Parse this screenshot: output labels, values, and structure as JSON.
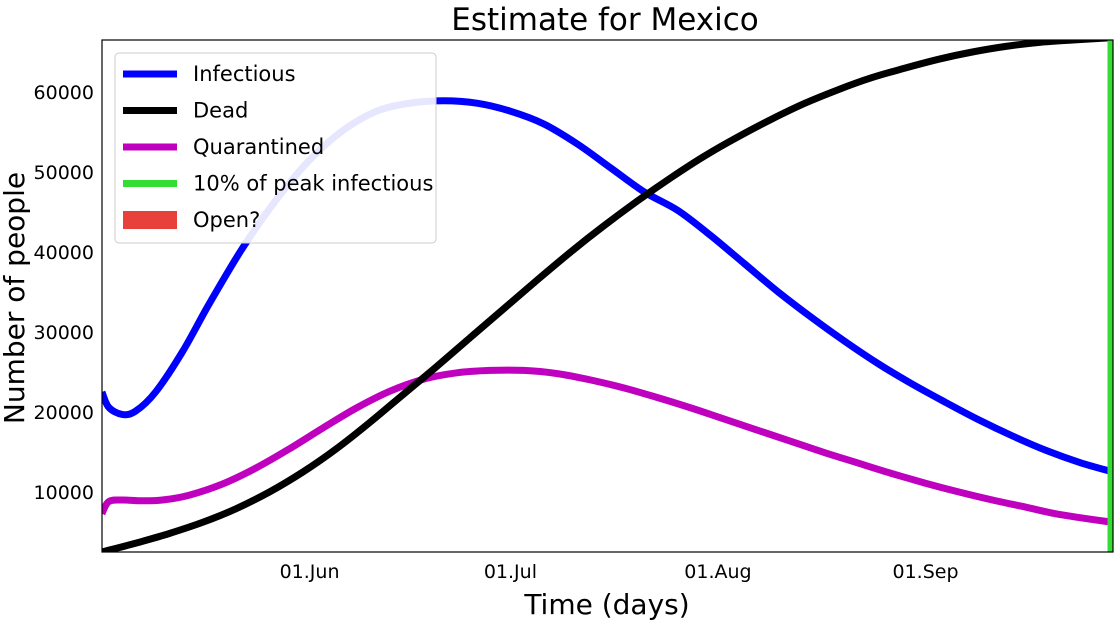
{
  "chart_data": {
    "type": "line",
    "title": "Estimate for Mexico",
    "xlabel": "Time (days)",
    "ylabel": "Number of people",
    "x_range": [
      "2020-05-01",
      "2020-09-29"
    ],
    "ylim": [
      2500,
      66500
    ],
    "x_ticks": [
      {
        "date": "2020-06-01",
        "label": "01.Jun"
      },
      {
        "date": "2020-07-01",
        "label": "01.Jul"
      },
      {
        "date": "2020-08-01",
        "label": "01.Aug"
      },
      {
        "date": "2020-09-01",
        "label": "01.Sep"
      }
    ],
    "y_ticks": [
      10000,
      20000,
      30000,
      40000,
      50000,
      60000
    ],
    "grid": false,
    "legend_position": "top-left",
    "series": [
      {
        "name": "Infectious",
        "color": "#0000ff",
        "points": [
          [
            "2020-05-01",
            22500
          ],
          [
            "2020-05-02",
            20600
          ],
          [
            "2020-05-04",
            19700
          ],
          [
            "2020-05-06",
            20100
          ],
          [
            "2020-05-09",
            22500
          ],
          [
            "2020-05-13",
            27500
          ],
          [
            "2020-05-17",
            33500
          ],
          [
            "2020-05-22",
            40500
          ],
          [
            "2020-05-27",
            46500
          ],
          [
            "2020-06-01",
            51500
          ],
          [
            "2020-06-06",
            55200
          ],
          [
            "2020-06-11",
            57600
          ],
          [
            "2020-06-16",
            58600
          ],
          [
            "2020-06-21",
            58900
          ],
          [
            "2020-06-26",
            58600
          ],
          [
            "2020-07-01",
            57600
          ],
          [
            "2020-07-06",
            56000
          ],
          [
            "2020-07-11",
            53500
          ],
          [
            "2020-07-16",
            50500
          ],
          [
            "2020-07-21",
            47500
          ],
          [
            "2020-07-26",
            45200
          ],
          [
            "2020-07-31",
            42000
          ],
          [
            "2020-08-05",
            38500
          ],
          [
            "2020-08-10",
            35000
          ],
          [
            "2020-08-15",
            31800
          ],
          [
            "2020-08-20",
            28800
          ],
          [
            "2020-08-25",
            26000
          ],
          [
            "2020-08-30",
            23500
          ],
          [
            "2020-09-04",
            21200
          ],
          [
            "2020-09-09",
            19000
          ],
          [
            "2020-09-14",
            17000
          ],
          [
            "2020-09-19",
            15200
          ],
          [
            "2020-09-24",
            13700
          ],
          [
            "2020-09-29",
            12500
          ]
        ]
      },
      {
        "name": "Dead",
        "color": "#000000",
        "points": [
          [
            "2020-05-01",
            2500
          ],
          [
            "2020-05-06",
            3600
          ],
          [
            "2020-05-11",
            4800
          ],
          [
            "2020-05-16",
            6200
          ],
          [
            "2020-05-21",
            7900
          ],
          [
            "2020-05-26",
            10000
          ],
          [
            "2020-05-31",
            12500
          ],
          [
            "2020-06-05",
            15400
          ],
          [
            "2020-06-10",
            18700
          ],
          [
            "2020-06-15",
            22200
          ],
          [
            "2020-06-20",
            25700
          ],
          [
            "2020-06-25",
            29300
          ],
          [
            "2020-06-30",
            32900
          ],
          [
            "2020-07-05",
            36500
          ],
          [
            "2020-07-10",
            40000
          ],
          [
            "2020-07-15",
            43300
          ],
          [
            "2020-07-20",
            46400
          ],
          [
            "2020-07-25",
            49300
          ],
          [
            "2020-07-30",
            52000
          ],
          [
            "2020-08-04",
            54400
          ],
          [
            "2020-08-09",
            56600
          ],
          [
            "2020-08-14",
            58600
          ],
          [
            "2020-08-19",
            60300
          ],
          [
            "2020-08-24",
            61800
          ],
          [
            "2020-08-29",
            63000
          ],
          [
            "2020-09-03",
            64100
          ],
          [
            "2020-09-08",
            65000
          ],
          [
            "2020-09-13",
            65700
          ],
          [
            "2020-09-18",
            66200
          ],
          [
            "2020-09-23",
            66500
          ],
          [
            "2020-09-29",
            66800
          ]
        ]
      },
      {
        "name": "Quarantined",
        "color": "#bf00bf",
        "points": [
          [
            "2020-05-01",
            7300
          ],
          [
            "2020-05-02",
            8800
          ],
          [
            "2020-05-04",
            9000
          ],
          [
            "2020-05-07",
            8900
          ],
          [
            "2020-05-10",
            9000
          ],
          [
            "2020-05-14",
            9600
          ],
          [
            "2020-05-19",
            11000
          ],
          [
            "2020-05-24",
            13000
          ],
          [
            "2020-05-29",
            15400
          ],
          [
            "2020-06-03",
            18000
          ],
          [
            "2020-06-08",
            20500
          ],
          [
            "2020-06-13",
            22600
          ],
          [
            "2020-06-18",
            24100
          ],
          [
            "2020-06-23",
            24900
          ],
          [
            "2020-06-28",
            25200
          ],
          [
            "2020-07-03",
            25200
          ],
          [
            "2020-07-08",
            24800
          ],
          [
            "2020-07-13",
            24000
          ],
          [
            "2020-07-18",
            23000
          ],
          [
            "2020-07-23",
            21800
          ],
          [
            "2020-07-28",
            20500
          ],
          [
            "2020-08-02",
            19100
          ],
          [
            "2020-08-07",
            17700
          ],
          [
            "2020-08-12",
            16300
          ],
          [
            "2020-08-17",
            14900
          ],
          [
            "2020-08-22",
            13600
          ],
          [
            "2020-08-27",
            12300
          ],
          [
            "2020-09-01",
            11100
          ],
          [
            "2020-09-06",
            10000
          ],
          [
            "2020-09-11",
            9000
          ],
          [
            "2020-09-16",
            8100
          ],
          [
            "2020-09-21",
            7200
          ],
          [
            "2020-09-29",
            6200
          ]
        ]
      }
    ],
    "vertical_lines": [
      {
        "name": "10% of peak infectious",
        "color": "#33dd33",
        "date": "2020-09-29"
      }
    ],
    "legend": [
      {
        "label": "Infectious",
        "color": "#0000ff",
        "kind": "line"
      },
      {
        "label": "Dead",
        "color": "#000000",
        "kind": "line"
      },
      {
        "label": "Quarantined",
        "color": "#bf00bf",
        "kind": "line"
      },
      {
        "label": "10% of peak infectious",
        "color": "#33dd33",
        "kind": "line"
      },
      {
        "label": "Open?",
        "color": "#e8413b",
        "kind": "patch"
      }
    ]
  }
}
